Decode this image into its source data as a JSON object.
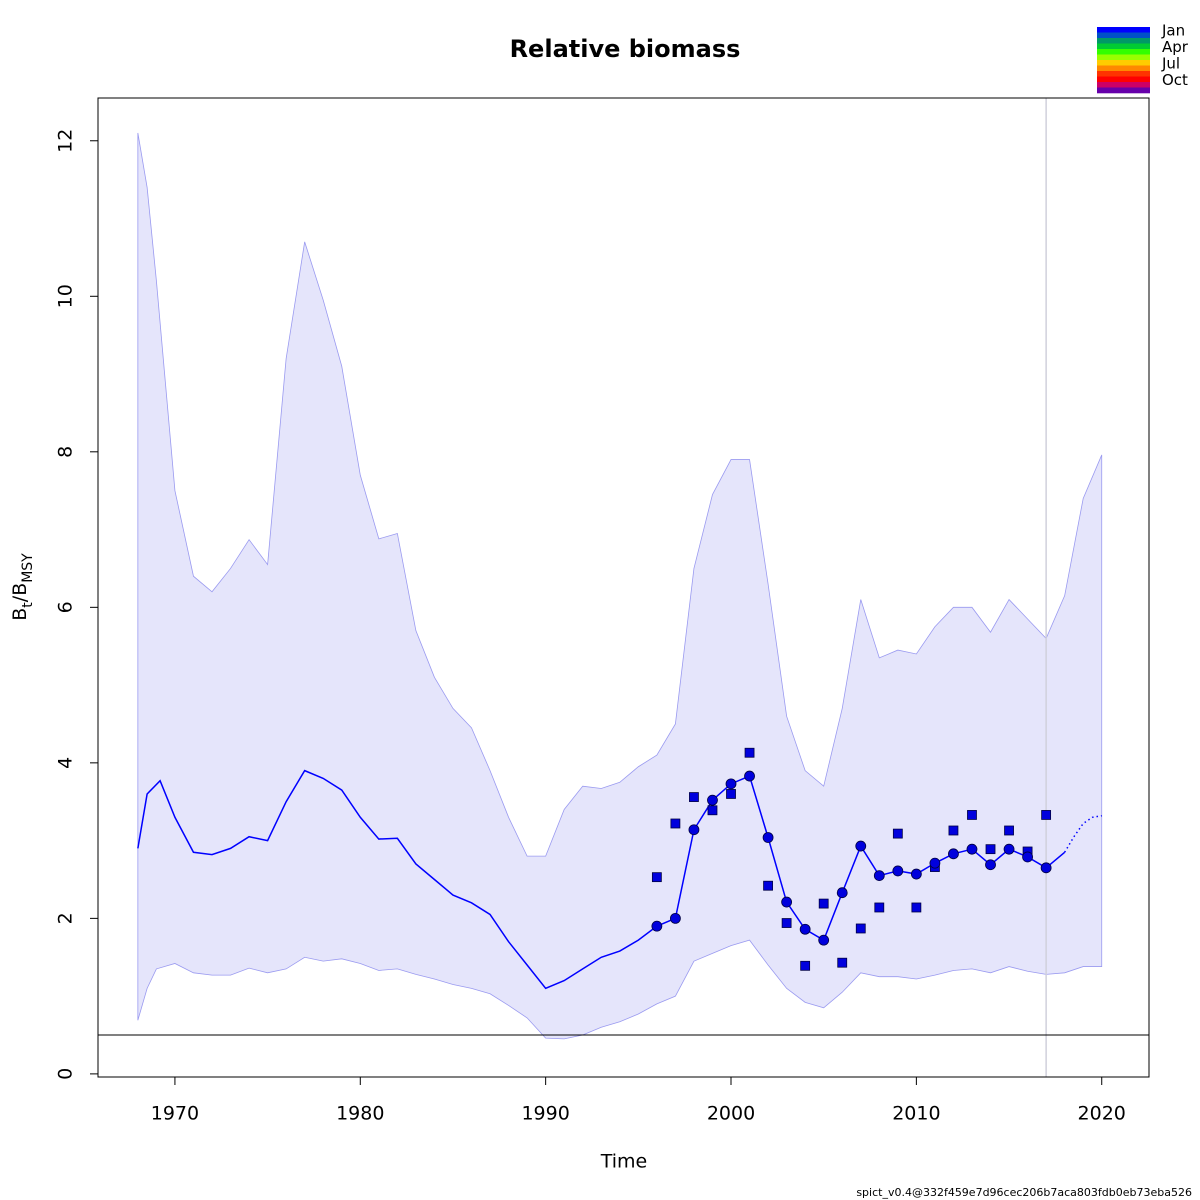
{
  "chart_data": {
    "type": "line",
    "title": "Relative biomass",
    "xlabel": "Time",
    "ylabel_parts": [
      "B",
      "t",
      "/B",
      "MSY"
    ],
    "footer": "spict_v0.4@332f459e7d96cec206b7aca803fdb0eb73eba526",
    "xlim": [
      1965.85,
      2022.55
    ],
    "ylim": [
      -0.04,
      12.55
    ],
    "xticks": [
      1970,
      1980,
      1990,
      2000,
      2010,
      2020
    ],
    "yticks": [
      0,
      2,
      4,
      6,
      8,
      10,
      12
    ],
    "hline": {
      "value": 0.5,
      "color": "#000000"
    },
    "vline": {
      "value": 2017,
      "color": "#d0d0dc"
    },
    "season_legend": {
      "labels": [
        "Jan",
        "Apr",
        "Jul",
        "Oct"
      ],
      "colors": [
        "#0000ff",
        "#0050c8",
        "#009966",
        "#00cc33",
        "#33ff00",
        "#99ff00",
        "#ffcc00",
        "#ff8800",
        "#ff3300",
        "#ff0000",
        "#cc0066",
        "#6600aa"
      ]
    },
    "series": [
      {
        "kind": "band",
        "color": "#e5e5fb",
        "edge_color": "#9a9af0",
        "x": [
          1968,
          1968.5,
          1969,
          1970,
          1971,
          1972,
          1973,
          1974,
          1975,
          1976,
          1977,
          1978,
          1979,
          1980,
          1981,
          1982,
          1983,
          1984,
          1985,
          1986,
          1987,
          1988,
          1989,
          1990,
          1991,
          1992,
          1993,
          1994,
          1995,
          1996,
          1997,
          1998,
          1999,
          2000,
          2001,
          2002,
          2003,
          2004,
          2005,
          2006,
          2007,
          2008,
          2009,
          2010,
          2011,
          2012,
          2013,
          2014,
          2015,
          2016,
          2017,
          2018,
          2019,
          2020
        ],
        "upper": [
          12.1,
          11.4,
          10.2,
          7.5,
          6.4,
          6.2,
          6.5,
          6.87,
          6.55,
          9.2,
          10.7,
          9.95,
          9.1,
          7.7,
          6.88,
          6.95,
          5.7,
          5.1,
          4.7,
          4.45,
          3.9,
          3.3,
          2.8,
          2.8,
          3.4,
          3.7,
          3.67,
          3.75,
          3.95,
          4.1,
          4.5,
          6.5,
          7.45,
          7.9,
          7.9,
          6.3,
          4.6,
          3.9,
          3.7,
          4.7,
          6.1,
          5.35,
          5.45,
          5.4,
          5.75,
          6.0,
          6.0,
          5.68,
          6.1,
          5.85,
          5.6,
          6.15,
          7.4,
          7.96
        ],
        "lower": [
          0.69,
          1.1,
          1.35,
          1.42,
          1.3,
          1.27,
          1.27,
          1.36,
          1.3,
          1.35,
          1.5,
          1.45,
          1.48,
          1.42,
          1.33,
          1.35,
          1.28,
          1.22,
          1.15,
          1.1,
          1.03,
          0.88,
          0.72,
          0.46,
          0.45,
          0.5,
          0.6,
          0.67,
          0.77,
          0.9,
          1.0,
          1.45,
          1.55,
          1.65,
          1.72,
          1.4,
          1.1,
          0.92,
          0.85,
          1.05,
          1.3,
          1.25,
          1.25,
          1.22,
          1.27,
          1.33,
          1.35,
          1.3,
          1.38,
          1.32,
          1.28,
          1.3,
          1.38,
          1.38
        ]
      },
      {
        "kind": "line",
        "color": "#0000ff",
        "linestyle": "solid",
        "x": [
          1968,
          1968.5,
          1969.2,
          1970,
          1971,
          1972,
          1973,
          1974,
          1975,
          1976,
          1977,
          1978,
          1979,
          1980,
          1981,
          1982,
          1983,
          1984,
          1985,
          1986,
          1987,
          1988,
          1989,
          1990,
          1991,
          1992,
          1993,
          1994,
          1995,
          1996,
          1997,
          1998,
          1999,
          2000,
          2001,
          2002,
          2003,
          2004,
          2005,
          2006,
          2007,
          2008,
          2009,
          2010,
          2011,
          2012,
          2013,
          2014,
          2015,
          2016,
          2017,
          2018
        ],
        "values": [
          2.9,
          3.6,
          3.77,
          3.3,
          2.85,
          2.82,
          2.9,
          3.05,
          3.0,
          3.5,
          3.9,
          3.8,
          3.65,
          3.3,
          3.02,
          3.03,
          2.7,
          2.5,
          2.3,
          2.2,
          2.05,
          1.7,
          1.4,
          1.1,
          1.2,
          1.35,
          1.5,
          1.58,
          1.72,
          1.9,
          2.0,
          3.14,
          3.52,
          3.73,
          3.83,
          3.04,
          2.21,
          1.86,
          1.72,
          2.33,
          2.93,
          2.55,
          2.61,
          2.57,
          2.71,
          2.83,
          2.89,
          2.69,
          2.89,
          2.79,
          2.65,
          2.85
        ]
      },
      {
        "kind": "line",
        "color": "#0000ff",
        "linestyle": "dotted",
        "x": [
          2018,
          2018.5,
          2019,
          2019.5,
          2020
        ],
        "values": [
          2.85,
          3.05,
          3.22,
          3.3,
          3.32
        ]
      },
      {
        "kind": "points",
        "marker": "square",
        "color": "#0000dd",
        "x": [
          1996,
          1997,
          1998,
          1999,
          2000,
          2001,
          2002,
          2003,
          2004,
          2005,
          2006,
          2007,
          2008,
          2009,
          2010,
          2011,
          2012,
          2013,
          2014,
          2015,
          2016,
          2017
        ],
        "values": [
          2.53,
          3.22,
          3.56,
          3.39,
          3.6,
          4.13,
          2.42,
          1.94,
          1.39,
          2.19,
          1.43,
          1.87,
          2.14,
          3.09,
          2.14,
          2.66,
          3.13,
          3.33,
          2.89,
          3.13,
          2.86,
          3.33
        ]
      },
      {
        "kind": "points",
        "marker": "circle",
        "color": "#0000dd",
        "x": [
          1996,
          1997,
          1998,
          1999,
          2000,
          2001,
          2002,
          2003,
          2004,
          2005,
          2006,
          2007,
          2008,
          2009,
          2010,
          2011,
          2012,
          2013,
          2014,
          2015,
          2016,
          2017
        ],
        "values": [
          1.9,
          2.0,
          3.14,
          3.52,
          3.73,
          3.83,
          3.04,
          2.21,
          1.86,
          1.72,
          2.33,
          2.93,
          2.55,
          2.61,
          2.57,
          2.71,
          2.83,
          2.89,
          2.69,
          2.89,
          2.79,
          2.65
        ]
      }
    ]
  }
}
